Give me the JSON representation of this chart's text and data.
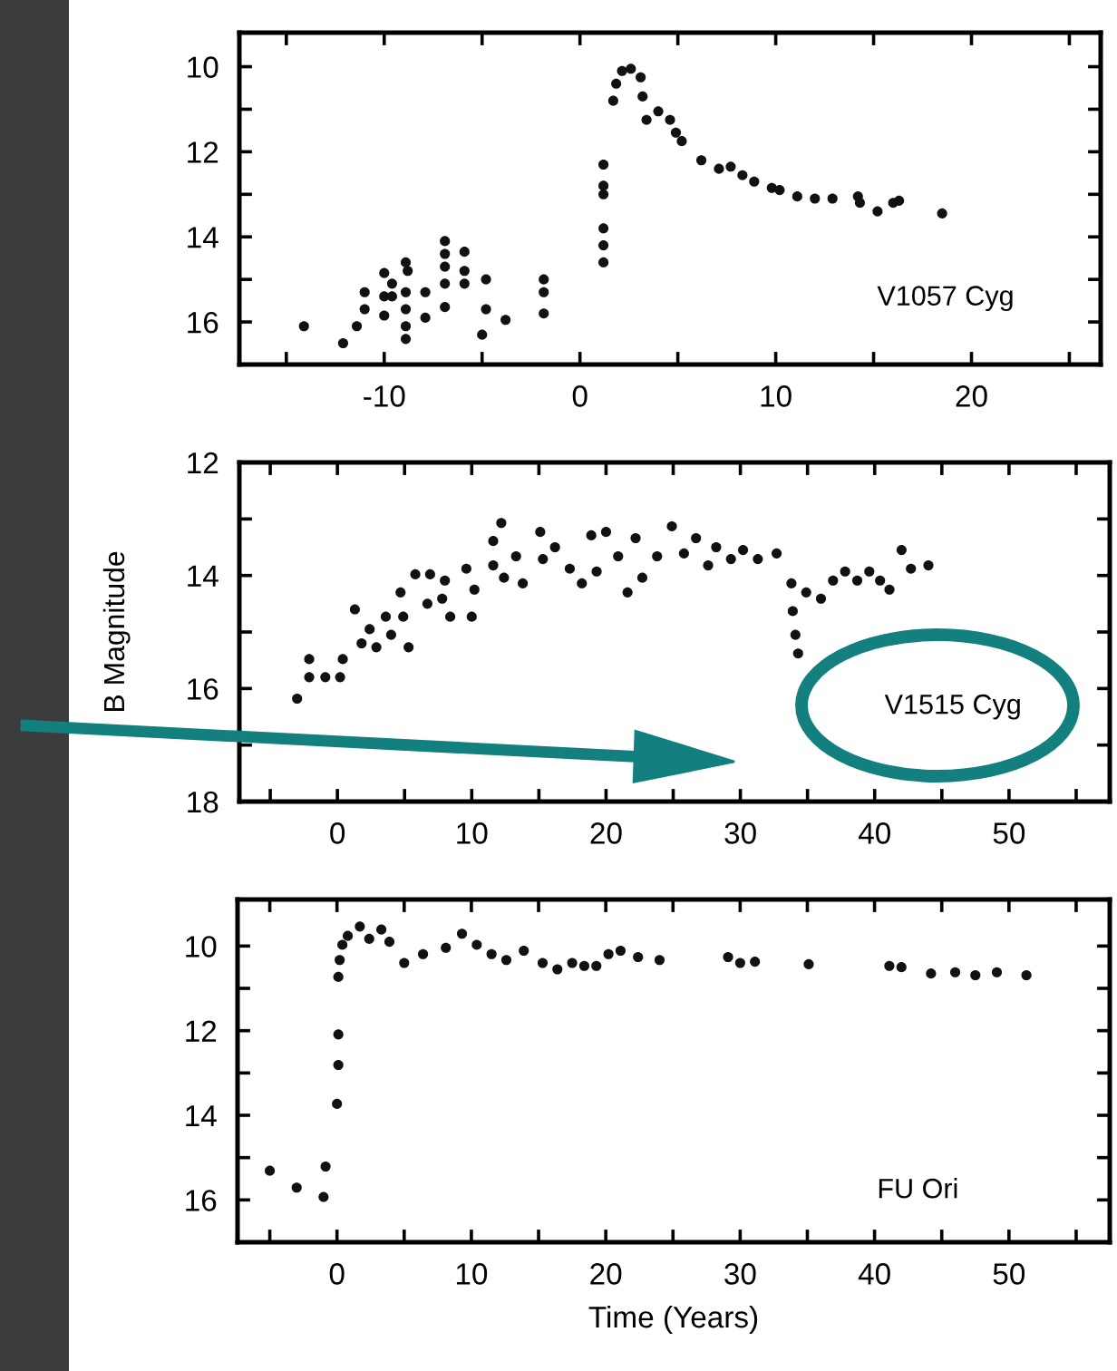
{
  "chart_data": [
    {
      "type": "scatter",
      "color": "#111111",
      "marker": "circle",
      "annotations": [
        "V1057 Cyg"
      ],
      "xlim": [
        -17.4,
        26.6
      ],
      "ylim": [
        17,
        9.2
      ],
      "xticks": [
        {
          "value": -15,
          "label": null
        },
        -10,
        {
          "value": -5,
          "label": null
        },
        0,
        {
          "value": 5,
          "label": null
        },
        10,
        {
          "value": 15,
          "label": null
        },
        20,
        {
          "value": 25,
          "label": null
        }
      ],
      "yticks": [
        10,
        {
          "value": 11,
          "label": null
        },
        12,
        {
          "value": 13,
          "label": null
        },
        14,
        {
          "value": 15,
          "label": null
        },
        16
      ],
      "x": [
        -14.1,
        -12.1,
        -11.4,
        -11.0,
        -11.0,
        -10.0,
        -10.0,
        -10.0,
        -9.6,
        -9.6,
        -8.9,
        -8.9,
        -8.9,
        -8.9,
        -8.9,
        -8.8,
        -7.9,
        -7.9,
        -6.9,
        -6.9,
        -6.9,
        -6.9,
        -6.9,
        -5.9,
        -5.9,
        -5.9,
        -4.8,
        -4.8,
        -5.0,
        -3.8,
        -1.85,
        -1.85,
        -1.85,
        1.2,
        1.2,
        1.2,
        1.2,
        1.2,
        1.2,
        1.7,
        1.85,
        2.15,
        2.6,
        3.1,
        3.2,
        3.4,
        4.0,
        4.6,
        4.9,
        5.2,
        6.2,
        7.1,
        7.7,
        8.3,
        8.9,
        9.8,
        10.2,
        11.1,
        12.0,
        12.9,
        14.2,
        14.3,
        15.2,
        16.0,
        16.3,
        18.5
      ],
      "values": [
        16.1,
        16.5,
        16.1,
        15.7,
        15.3,
        14.85,
        15.4,
        15.85,
        15.1,
        15.4,
        14.6,
        15.3,
        15.7,
        16.1,
        16.4,
        14.8,
        15.3,
        15.9,
        14.1,
        14.4,
        14.7,
        15.1,
        15.65,
        14.35,
        14.8,
        15.1,
        15.0,
        15.7,
        16.3,
        15.95,
        15.0,
        15.3,
        15.8,
        12.3,
        12.8,
        13.0,
        13.8,
        14.2,
        14.6,
        10.8,
        10.4,
        10.1,
        10.05,
        10.25,
        10.7,
        11.25,
        11.05,
        11.25,
        11.55,
        11.75,
        12.2,
        12.4,
        12.35,
        12.55,
        12.7,
        12.85,
        12.9,
        13.05,
        13.1,
        13.1,
        13.05,
        13.2,
        13.4,
        13.2,
        13.15,
        13.45
      ]
    },
    {
      "type": "scatter",
      "color": "#111111",
      "marker": "circle",
      "annotations": [
        "V1515 Cyg"
      ],
      "ylabel": "B Magnitude",
      "xlim": [
        -7.3,
        57.5
      ],
      "ylim": [
        18,
        12
      ],
      "xticks": [
        {
          "value": -5,
          "label": null
        },
        0,
        {
          "value": 5,
          "label": null
        },
        10,
        {
          "value": 15,
          "label": null
        },
        20,
        {
          "value": 25,
          "label": null
        },
        30,
        {
          "value": 35,
          "label": null
        },
        40,
        {
          "value": 45,
          "label": null
        },
        50,
        {
          "value": 55,
          "label": null
        }
      ],
      "yticks": [
        12,
        {
          "value": 13,
          "label": null
        },
        14,
        {
          "value": 15,
          "label": null
        },
        16,
        {
          "value": 17,
          "label": null
        },
        18
      ],
      "x": [
        -3.0,
        -2.1,
        -2.1,
        -0.9,
        0.2,
        0.4,
        1.3,
        1.8,
        2.4,
        2.9,
        3.6,
        4.0,
        4.7,
        4.9,
        5.3,
        5.8,
        6.7,
        6.9,
        7.8,
        8.0,
        8.4,
        9.6,
        10.0,
        10.2,
        11.6,
        11.6,
        12.2,
        12.4,
        13.3,
        13.8,
        15.1,
        15.3,
        16.2,
        17.3,
        18.2,
        18.9,
        19.3,
        20.0,
        20.9,
        21.6,
        22.2,
        22.7,
        23.8,
        24.9,
        25.8,
        26.7,
        27.6,
        28.2,
        29.3,
        30.2,
        31.3,
        32.7,
        33.8,
        33.9,
        34.1,
        34.3,
        34.9,
        36.0,
        36.9,
        37.8,
        38.7,
        39.6,
        40.4,
        41.1,
        42.0,
        42.7,
        44.0
      ],
      "values": [
        16.18,
        15.48,
        15.8,
        15.8,
        15.8,
        15.48,
        14.6,
        15.2,
        14.95,
        15.27,
        14.73,
        15.05,
        14.3,
        14.73,
        15.27,
        13.98,
        14.5,
        13.98,
        14.41,
        14.09,
        14.73,
        13.88,
        14.73,
        14.25,
        13.39,
        13.82,
        13.07,
        14.04,
        13.66,
        14.14,
        13.23,
        13.71,
        13.5,
        13.88,
        14.14,
        13.29,
        13.93,
        13.23,
        13.66,
        14.3,
        13.34,
        14.04,
        13.66,
        13.13,
        13.61,
        13.34,
        13.82,
        13.5,
        13.71,
        13.55,
        13.71,
        13.61,
        14.14,
        14.63,
        15.05,
        15.38,
        14.3,
        14.41,
        14.09,
        13.93,
        14.09,
        13.93,
        14.09,
        14.25,
        13.55,
        13.88,
        13.82
      ]
    },
    {
      "type": "scatter",
      "color": "#111111",
      "marker": "circle",
      "annotations": [
        "FU Ori"
      ],
      "xlabel": "Time (Years)",
      "xlim": [
        -7.4,
        57.5
      ],
      "ylim": [
        17,
        8.9
      ],
      "xticks": [
        {
          "value": -5,
          "label": null
        },
        0,
        {
          "value": 5,
          "label": null
        },
        10,
        {
          "value": 15,
          "label": null
        },
        20,
        {
          "value": 25,
          "label": null
        },
        30,
        {
          "value": 35,
          "label": null
        },
        40,
        {
          "value": 45,
          "label": null
        },
        50,
        {
          "value": 55,
          "label": null
        }
      ],
      "yticks": [
        10,
        {
          "value": 11,
          "label": null
        },
        12,
        {
          "value": 13,
          "label": null
        },
        14,
        {
          "value": 15,
          "label": null
        },
        16
      ],
      "x": [
        -5.0,
        -3.0,
        -1.0,
        -0.85,
        0.0,
        0.1,
        0.1,
        0.1,
        0.2,
        0.4,
        0.8,
        1.7,
        2.4,
        3.3,
        3.9,
        5.0,
        6.4,
        8.1,
        9.3,
        10.4,
        11.5,
        12.6,
        13.9,
        15.3,
        16.4,
        17.5,
        18.4,
        19.3,
        20.2,
        21.1,
        22.4,
        24.0,
        29.1,
        30.0,
        31.1,
        35.1,
        41.1,
        42.0,
        44.2,
        46.0,
        47.5,
        49.1,
        51.3
      ],
      "values": [
        15.31,
        15.71,
        15.93,
        15.21,
        13.73,
        12.81,
        12.09,
        10.73,
        10.33,
        9.97,
        9.76,
        9.54,
        9.83,
        9.61,
        9.9,
        10.4,
        10.19,
        10.04,
        9.71,
        9.97,
        10.19,
        10.33,
        10.11,
        10.4,
        10.55,
        10.4,
        10.47,
        10.47,
        10.19,
        10.11,
        10.26,
        10.33,
        10.26,
        10.4,
        10.37,
        10.43,
        10.47,
        10.5,
        10.65,
        10.62,
        10.69,
        10.62,
        10.69
      ]
    }
  ]
}
